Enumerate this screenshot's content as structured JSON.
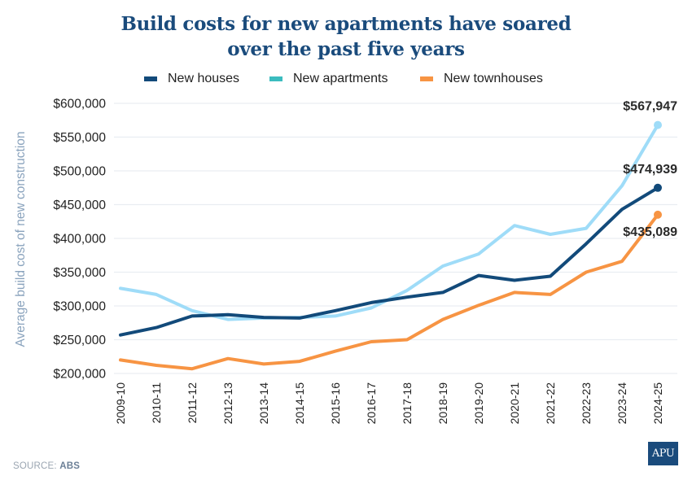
{
  "title_lines": [
    "Build costs for new apartments have soared",
    "over the past five years"
  ],
  "source": {
    "prefix": "SOURCE:",
    "name": "ABS"
  },
  "logo": {
    "text": "APU",
    "color": "#1a4b7c"
  },
  "chart_data": {
    "type": "line",
    "title": "Build costs for new apartments have soared over the past five years",
    "xlabel": "",
    "ylabel": "Average build cost of new construction",
    "ylim": [
      200000,
      600000
    ],
    "yticks": [
      200000,
      250000,
      300000,
      350000,
      400000,
      450000,
      500000,
      550000,
      600000
    ],
    "ytick_labels": [
      "$200,000",
      "$250,000",
      "$300,000",
      "$350,000",
      "$400,000",
      "$450,000",
      "$500,000",
      "$550,000",
      "$600,000"
    ],
    "grid": true,
    "legend_position": "top-center",
    "categories": [
      "2009-10",
      "2010-11",
      "2011-12",
      "2012-13",
      "2013-14",
      "2014-15",
      "2015-16",
      "2016-17",
      "2017-18",
      "2018-19",
      "2019-20",
      "2020-21",
      "2021-22",
      "2022-23",
      "2023-24",
      "2024-25"
    ],
    "series": [
      {
        "name": "New houses",
        "color": "#124a7a",
        "legend_color": "#124a7a",
        "values": [
          257000,
          268000,
          285000,
          287000,
          283000,
          282000,
          293000,
          305000,
          313000,
          320000,
          345000,
          338000,
          344000,
          392000,
          443000,
          474939
        ],
        "end_label": "$474,939"
      },
      {
        "name": "New apartments",
        "color": "#9fdcf8",
        "legend_color": "#3bbcbf",
        "values": [
          326000,
          317000,
          293000,
          280000,
          282000,
          283000,
          285000,
          297000,
          323000,
          359000,
          377000,
          419000,
          406000,
          415000,
          478000,
          567947
        ],
        "end_label": "$567,947"
      },
      {
        "name": "New townhouses",
        "color": "#f79443",
        "legend_color": "#f79443",
        "values": [
          220000,
          212000,
          207000,
          222000,
          214000,
          218000,
          233000,
          247000,
          250000,
          280000,
          301000,
          320000,
          317000,
          350000,
          366000,
          435089
        ],
        "end_label": "$435,089"
      }
    ]
  }
}
